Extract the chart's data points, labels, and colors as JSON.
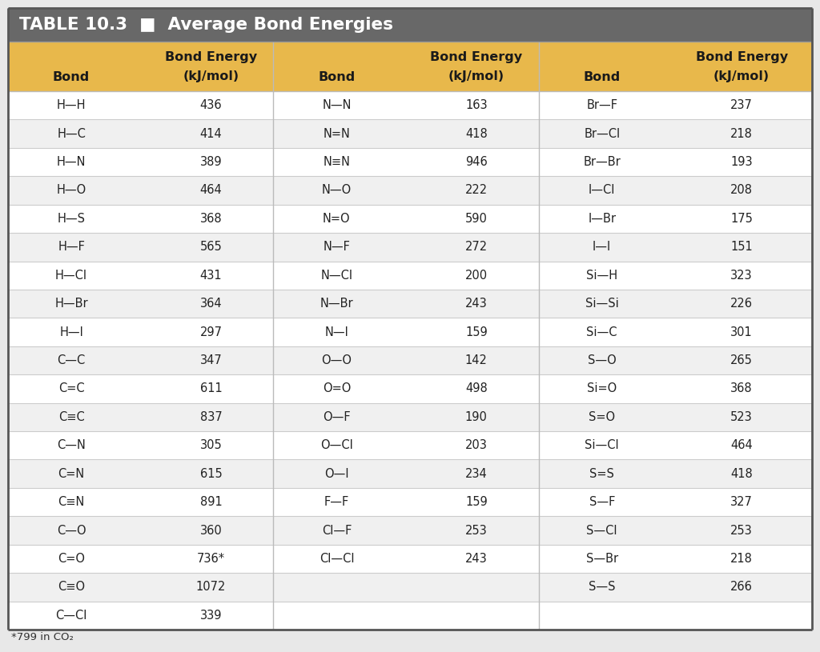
{
  "title": "TABLE 10.3  ■  Average Bond Energies",
  "title_bg": "#686868",
  "title_color": "#ffffff",
  "header_bg": "#e8b84b",
  "header_color": "#1a1a1a",
  "row_bg_white": "#ffffff",
  "row_bg_gray": "#f0f0f0",
  "border_dark": "#555555",
  "border_light": "#cccccc",
  "footnote": "*799 in CO₂",
  "col1_data": [
    [
      "H—H",
      "436"
    ],
    [
      "H—C",
      "414"
    ],
    [
      "H—N",
      "389"
    ],
    [
      "H—O",
      "464"
    ],
    [
      "H—S",
      "368"
    ],
    [
      "H—F",
      "565"
    ],
    [
      "H—Cl",
      "431"
    ],
    [
      "H—Br",
      "364"
    ],
    [
      "H—I",
      "297"
    ],
    [
      "C—C",
      "347"
    ],
    [
      "C=C",
      "611"
    ],
    [
      "C≡C",
      "837"
    ],
    [
      "C—N",
      "305"
    ],
    [
      "C=N",
      "615"
    ],
    [
      "C≡N",
      "891"
    ],
    [
      "C—O",
      "360"
    ],
    [
      "C=O",
      "736*"
    ],
    [
      "C≡O",
      "1072"
    ],
    [
      "C—Cl",
      "339"
    ]
  ],
  "col2_data": [
    [
      "N—N",
      "163"
    ],
    [
      "N=N",
      "418"
    ],
    [
      "N≡N",
      "946"
    ],
    [
      "N—O",
      "222"
    ],
    [
      "N=O",
      "590"
    ],
    [
      "N—F",
      "272"
    ],
    [
      "N—Cl",
      "200"
    ],
    [
      "N—Br",
      "243"
    ],
    [
      "N—I",
      "159"
    ],
    [
      "O—O",
      "142"
    ],
    [
      "O=O",
      "498"
    ],
    [
      "O—F",
      "190"
    ],
    [
      "O—Cl",
      "203"
    ],
    [
      "O—I",
      "234"
    ],
    [
      "F—F",
      "159"
    ],
    [
      "Cl—F",
      "253"
    ],
    [
      "Cl—Cl",
      "243"
    ],
    [
      "",
      ""
    ],
    [
      "",
      ""
    ]
  ],
  "col3_data": [
    [
      "Br—F",
      "237"
    ],
    [
      "Br—Cl",
      "218"
    ],
    [
      "Br—Br",
      "193"
    ],
    [
      "I—Cl",
      "208"
    ],
    [
      "I—Br",
      "175"
    ],
    [
      "I—I",
      "151"
    ],
    [
      "Si—H",
      "323"
    ],
    [
      "Si—Si",
      "226"
    ],
    [
      "Si—C",
      "301"
    ],
    [
      "S—O",
      "265"
    ],
    [
      "Si=O",
      "368"
    ],
    [
      "S=O",
      "523"
    ],
    [
      "Si—Cl",
      "464"
    ],
    [
      "S=S",
      "418"
    ],
    [
      "S—F",
      "327"
    ],
    [
      "S—Cl",
      "253"
    ],
    [
      "S—Br",
      "218"
    ],
    [
      "S—S",
      "266"
    ],
    [
      "",
      ""
    ]
  ]
}
